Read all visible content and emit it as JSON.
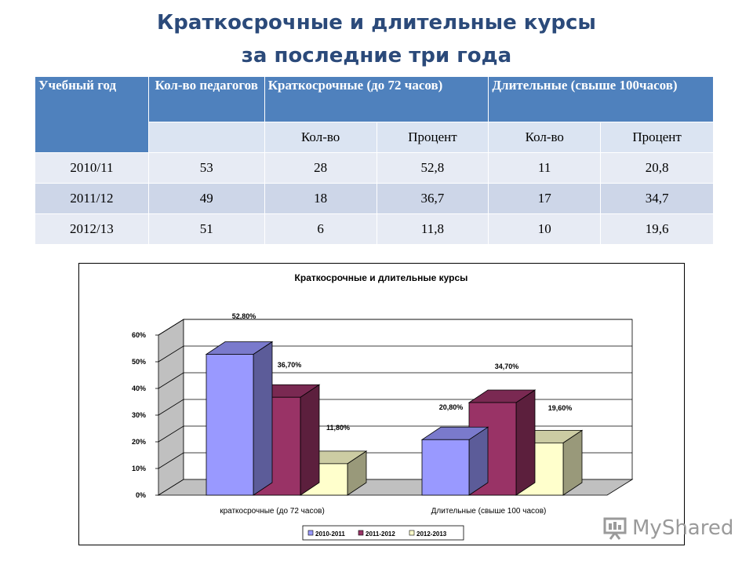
{
  "page": {
    "title_line1": "Краткосрочные и длительные курсы",
    "title_line2": "за последние три года"
  },
  "table": {
    "col_year": "Учебный год",
    "col_teachers": "Кол-во педагогов",
    "col_short": "Краткосрочные (до 72 часов)",
    "col_long": "Длительные (свыше 100часов)",
    "sub_count": "Кол-во",
    "sub_percent": "Процент",
    "rows": [
      [
        "2010/11",
        "53",
        "28",
        "52,8",
        "11",
        "20,8"
      ],
      [
        "2011/12",
        "49",
        "18",
        "36,7",
        "17",
        "34,7"
      ],
      [
        "2012/13",
        "51",
        "6",
        "11,8",
        "10",
        "19,6"
      ]
    ]
  },
  "chart_data": {
    "type": "bar",
    "title": "Краткосрочные и длительные курсы",
    "categories": [
      "краткосрочные (до 72 часов)",
      "Длительные (свыше 100 часов)"
    ],
    "series": [
      {
        "name": "2010-2011",
        "values": [
          52.8,
          20.8
        ],
        "labels": [
          "52,80%",
          "20,80%"
        ],
        "color": "#9999ff"
      },
      {
        "name": "2011-2012",
        "values": [
          36.7,
          34.7
        ],
        "labels": [
          "36,70%",
          "34,70%"
        ],
        "color": "#993366"
      },
      {
        "name": "2012-2013",
        "values": [
          11.8,
          19.6
        ],
        "labels": [
          "11,80%",
          "19,60%"
        ],
        "color": "#ffffcc"
      }
    ],
    "ylim": [
      0,
      60
    ],
    "yticks": [
      "0%",
      "10%",
      "20%",
      "30%",
      "40%",
      "50%",
      "60%"
    ],
    "grid": true,
    "legend": "bottom",
    "style": "3d-clustered-column"
  },
  "watermark": {
    "text": "MyShared"
  }
}
